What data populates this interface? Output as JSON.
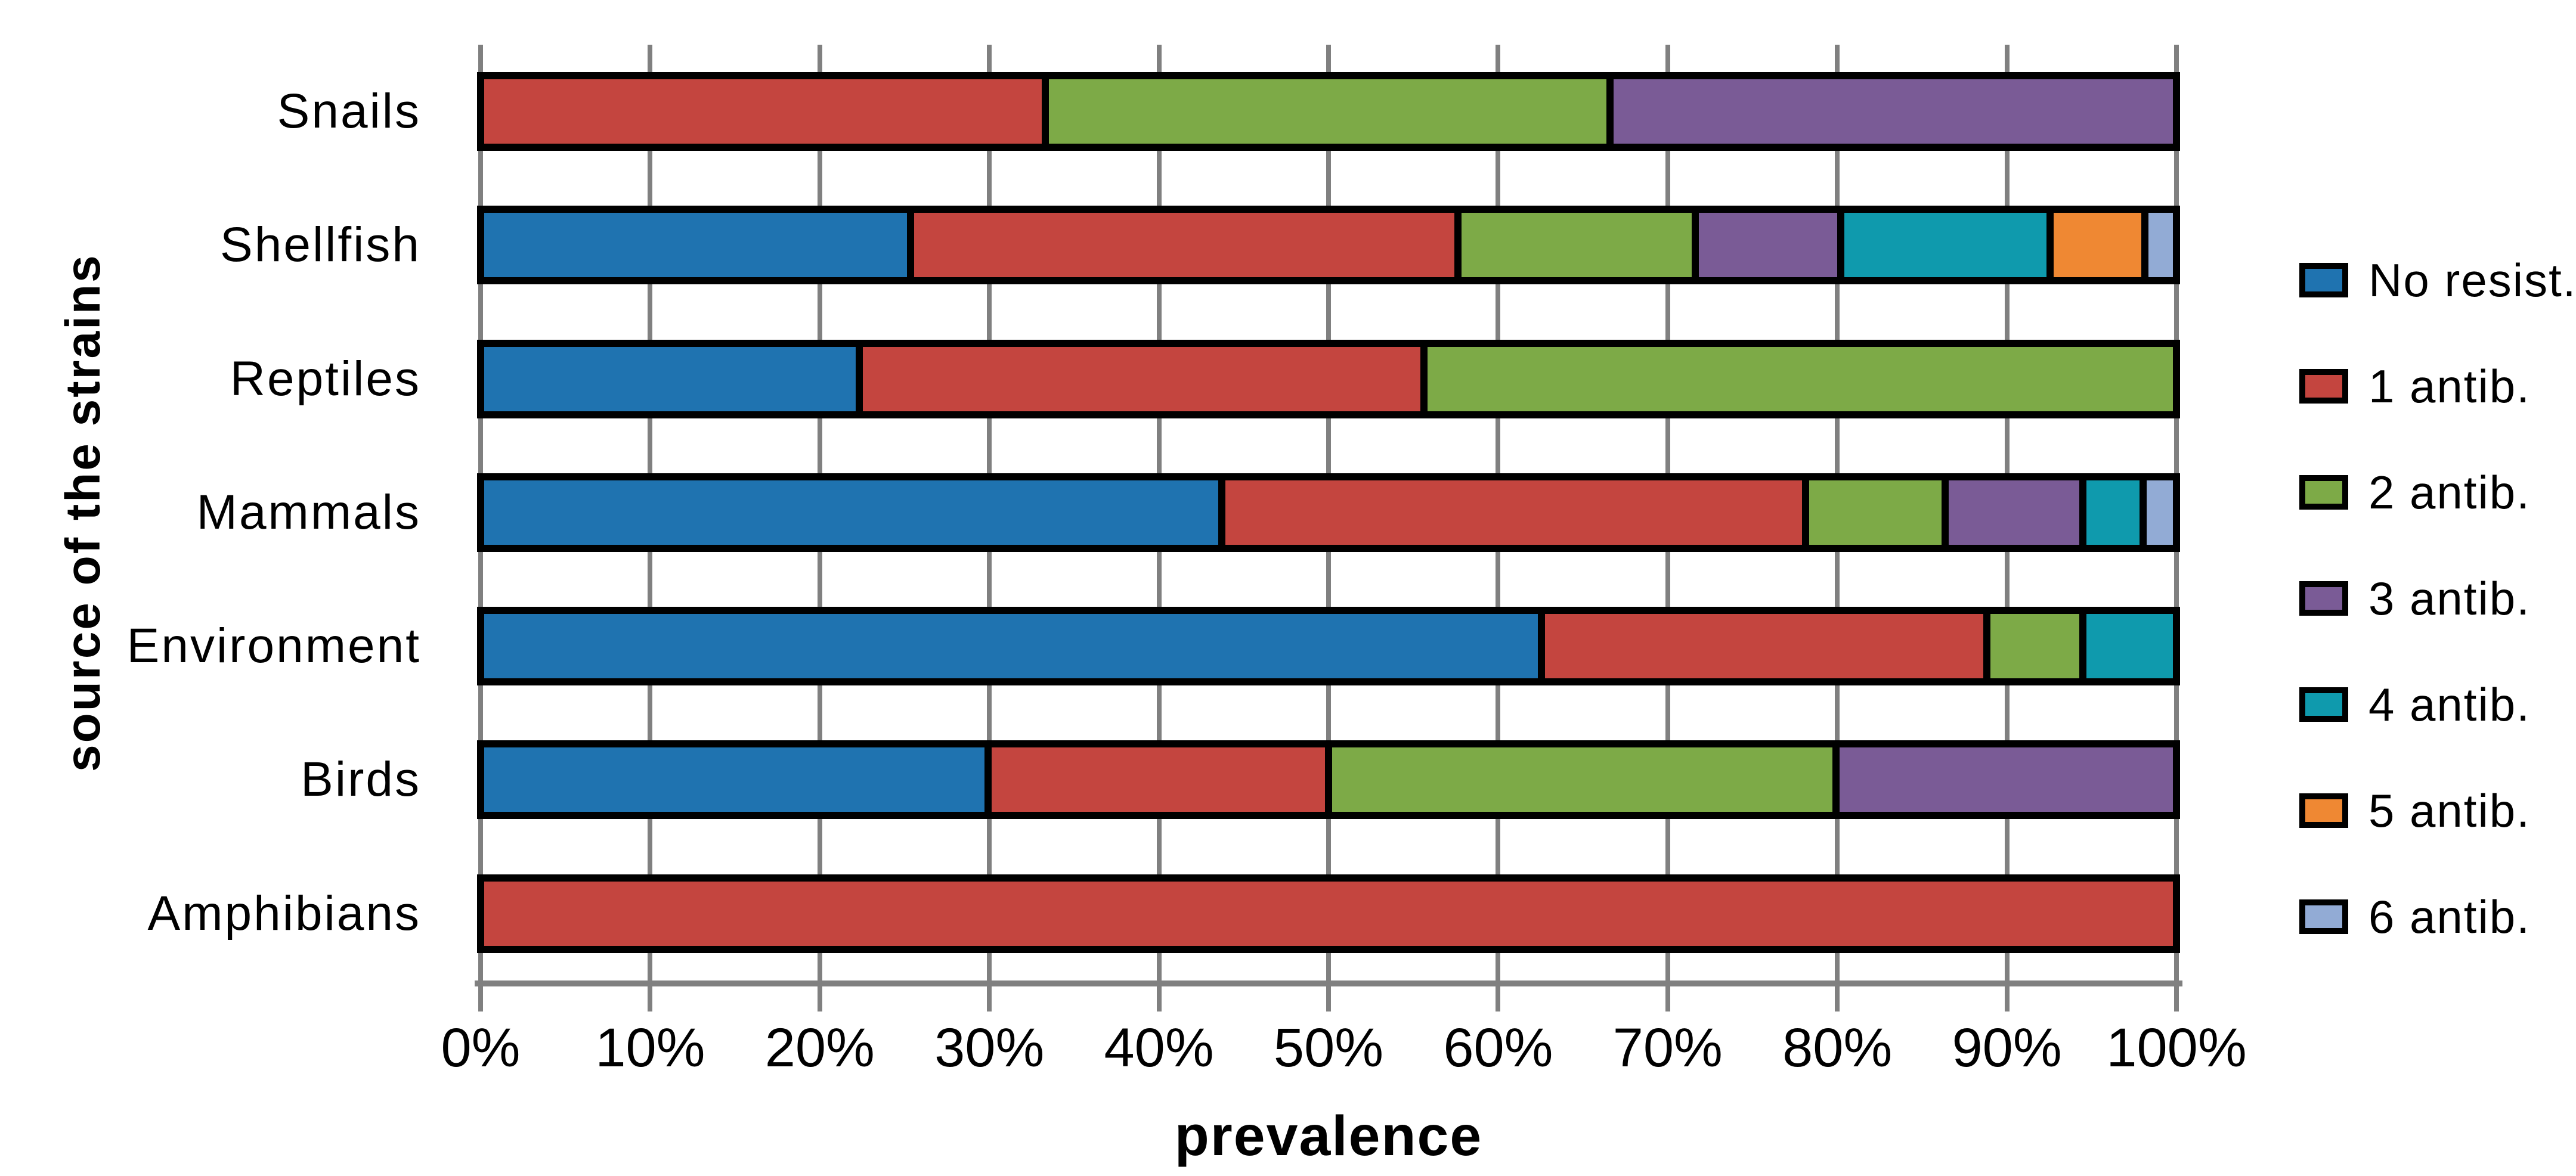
{
  "chart_data": {
    "type": "bar",
    "orientation": "horizontal",
    "stacked": true,
    "title": "",
    "xlabel": "prevalence",
    "ylabel": "source of the strains",
    "xlim": [
      0,
      100
    ],
    "x_tick_step": 10,
    "x_ticks": [
      "0%",
      "10%",
      "20%",
      "30%",
      "40%",
      "50%",
      "60%",
      "70%",
      "80%",
      "90%",
      "100%"
    ],
    "grid": "vertical-major-only",
    "legend_position": "right",
    "categories": [
      "Snails",
      "Shellfish",
      "Reptiles",
      "Mammals",
      "Environment",
      "Birds",
      "Amphibians"
    ],
    "series": [
      {
        "name": "No resist.",
        "color": "#1F73B0",
        "values": [
          0,
          25.7,
          22.2,
          44.4,
          63.2,
          30,
          0
        ]
      },
      {
        "name": "1 antib.",
        "color": "#C4453F",
        "values": [
          33.3,
          32.8,
          33.3,
          34.9,
          26.3,
          20,
          100
        ]
      },
      {
        "name": "2 antib.",
        "color": "#7DAA47",
        "values": [
          33.3,
          14.0,
          44.5,
          8.0,
          5.3,
          30,
          0
        ]
      },
      {
        "name": "3 antib.",
        "color": "#7A5B96",
        "values": [
          33.4,
          8.4,
          0,
          7.9,
          0,
          20,
          0
        ]
      },
      {
        "name": "4 antib.",
        "color": "#0F9AAD",
        "values": [
          0,
          12.3,
          0,
          3.2,
          5.2,
          0,
          0
        ]
      },
      {
        "name": "5 antib.",
        "color": "#EF8833",
        "values": [
          0,
          5.3,
          0,
          0,
          0,
          0,
          0
        ]
      },
      {
        "name": "6 antib.",
        "color": "#92ABD5",
        "values": [
          0,
          1.5,
          0,
          1.6,
          0,
          0,
          0
        ]
      }
    ]
  },
  "style": {
    "gridline_color": "#808080",
    "axis_color": "#808080",
    "bar_border_color": "#000000",
    "text_color": "#000000",
    "background": "#FFFFFF"
  }
}
